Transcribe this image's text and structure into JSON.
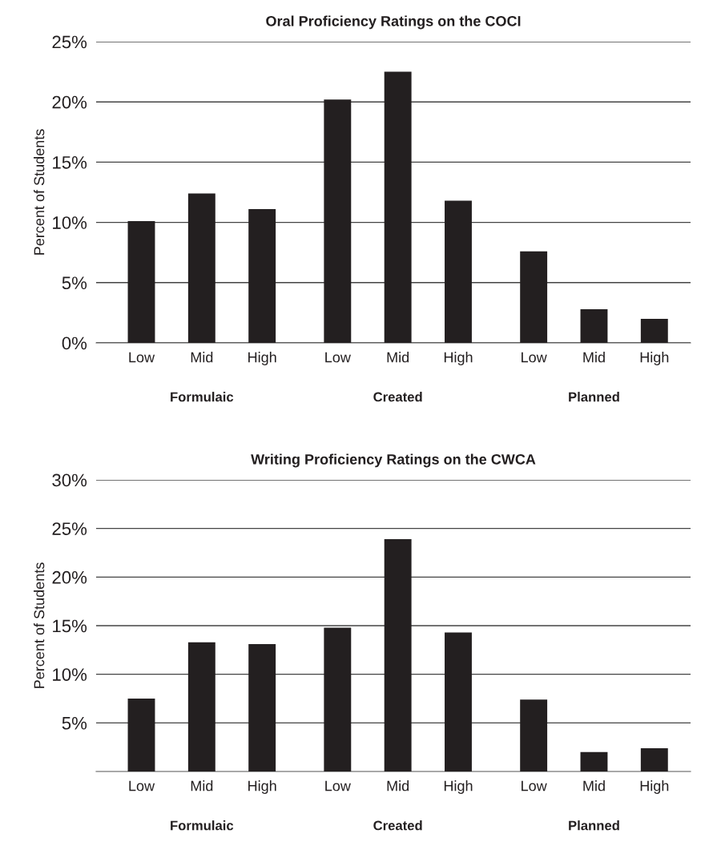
{
  "chart_data": [
    {
      "type": "bar",
      "title": "Oral Proficiency Ratings on the COCI",
      "ylabel": "Percent of Students",
      "categories": [
        "Low",
        "Mid",
        "High",
        "Low",
        "Mid",
        "High",
        "Low",
        "Mid",
        "High"
      ],
      "values": [
        10.1,
        12.4,
        11.1,
        20.2,
        22.5,
        11.8,
        7.6,
        2.8,
        2.0
      ],
      "color": "#231f20",
      "ylim": [
        0,
        25
      ],
      "yticks": [
        {
          "value": 0,
          "label": "0%"
        },
        {
          "value": 5,
          "label": "5%"
        },
        {
          "value": 10,
          "label": "10%"
        },
        {
          "value": 15,
          "label": "15%"
        },
        {
          "value": 20,
          "label": "20%"
        },
        {
          "value": 25,
          "label": "25%"
        }
      ],
      "grid": "y",
      "annotations": [
        "Formulaic",
        "Created",
        "Planned"
      ]
    },
    {
      "type": "bar",
      "title": "Writing Proficiency Ratings on the CWCA",
      "ylabel": "Percent of Students",
      "categories": [
        "Low",
        "Mid",
        "High",
        "Low",
        "Mid",
        "High",
        "Low",
        "Mid",
        "High"
      ],
      "values": [
        7.5,
        13.3,
        13.1,
        14.8,
        23.9,
        14.3,
        7.4,
        2.0,
        2.4
      ],
      "color": "#231f20",
      "ylim": [
        0,
        30
      ],
      "yticks": [
        {
          "value": 5,
          "label": "5%"
        },
        {
          "value": 10,
          "label": "10%"
        },
        {
          "value": 15,
          "label": "15%"
        },
        {
          "value": 20,
          "label": "20%"
        },
        {
          "value": 25,
          "label": "25%"
        },
        {
          "value": 30,
          "label": "30%"
        }
      ],
      "grid": "y",
      "annotations": [
        "Formulaic",
        "Created",
        "Planned"
      ]
    }
  ]
}
